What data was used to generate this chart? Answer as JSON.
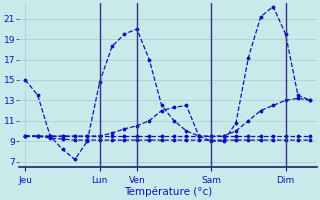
{
  "title": "Température (°c)",
  "bg_color": "#c8eaea",
  "line_color": "#1111bb",
  "grid_color": "#aacccc",
  "tick_color": "#1111bb",
  "ylim": [
    6.5,
    22.5
  ],
  "yticks": [
    7,
    9,
    11,
    13,
    15,
    17,
    19,
    21
  ],
  "day_labels": [
    "Jeu",
    "Lun",
    "Ven",
    "Sam",
    "Dim"
  ],
  "day_positions": [
    0,
    6,
    9,
    15,
    21
  ],
  "xlim": [
    -0.5,
    23.5
  ],
  "series1": [
    15.0,
    13.5,
    9.5,
    8.2,
    7.2,
    9.0,
    14.8,
    18.3,
    19.5,
    20.0,
    17.0,
    12.5,
    11.0,
    10.0,
    9.5,
    9.0,
    9.0,
    10.8,
    17.2,
    21.2,
    22.2,
    19.5,
    13.5,
    13.0
  ],
  "series2": [
    9.5,
    9.5,
    9.5,
    9.5,
    9.5,
    9.5,
    9.5,
    9.8,
    10.2,
    10.5,
    11.0,
    12.0,
    12.3,
    12.5,
    9.5,
    9.5,
    9.5,
    10.0,
    11.0,
    12.0,
    12.5,
    13.0,
    13.2,
    13.0
  ],
  "series3": [
    9.5,
    9.5,
    9.3,
    9.2,
    9.1,
    9.1,
    9.1,
    9.1,
    9.1,
    9.1,
    9.1,
    9.1,
    9.1,
    9.1,
    9.1,
    9.1,
    9.1,
    9.1,
    9.1,
    9.1,
    9.1,
    9.1,
    9.1,
    9.1
  ],
  "series4": [
    9.5,
    9.5,
    9.5,
    9.5,
    9.5,
    9.5,
    9.5,
    9.5,
    9.5,
    9.5,
    9.5,
    9.5,
    9.5,
    9.5,
    9.5,
    9.5,
    9.5,
    9.5,
    9.5,
    9.5,
    9.5,
    9.5,
    9.5,
    9.5
  ]
}
